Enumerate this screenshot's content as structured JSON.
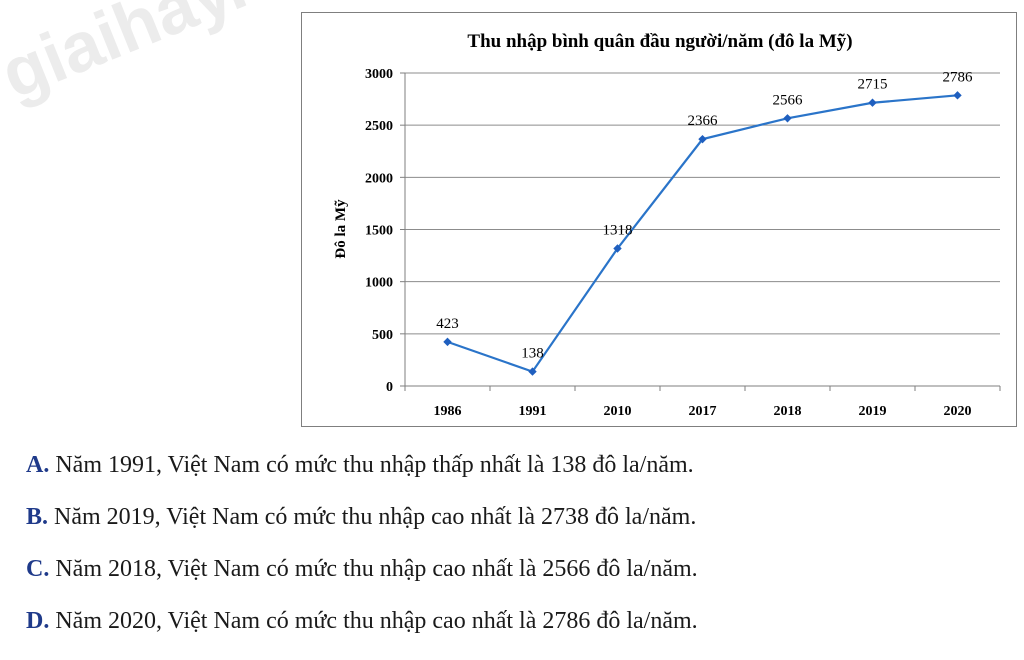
{
  "watermark": "giaihay.c",
  "chart_data": {
    "type": "line",
    "title": "Thu nhập bình quân đầu người/năm (đô la Mỹ)",
    "xlabel": "",
    "ylabel": "Đô la Mỹ",
    "categories": [
      "1986",
      "1991",
      "2010",
      "2017",
      "2018",
      "2019",
      "2020"
    ],
    "series": [
      {
        "values": [
          423,
          138,
          1318,
          2366,
          2566,
          2715,
          2786
        ]
      }
    ],
    "data_labels": [
      "423",
      "138",
      "1318",
      "2366",
      "2566",
      "2715",
      "2786"
    ],
    "ylim": [
      0,
      3000
    ],
    "yticks": [
      0,
      500,
      1000,
      1500,
      2000,
      2500,
      3000
    ],
    "grid": true,
    "line_color": "#2a74c9",
    "marker_color": "#1f5fbf",
    "marker": "diamond",
    "legend": "none"
  },
  "answers": [
    {
      "letter": "A.",
      "text": " Năm 1991, Việt Nam có mức thu nhập thấp nhất là 138 đô la/năm."
    },
    {
      "letter": "B.",
      "text": " Năm 2019, Việt Nam có mức thu nhập cao nhất là 2738 đô la/năm."
    },
    {
      "letter": "C.",
      "text": " Năm 2018, Việt Nam có mức thu nhập cao nhất là 2566 đô la/năm."
    },
    {
      "letter": "D.",
      "text": " Năm 2020, Việt Nam có mức thu nhập cao nhất là 2786 đô la/năm."
    }
  ]
}
